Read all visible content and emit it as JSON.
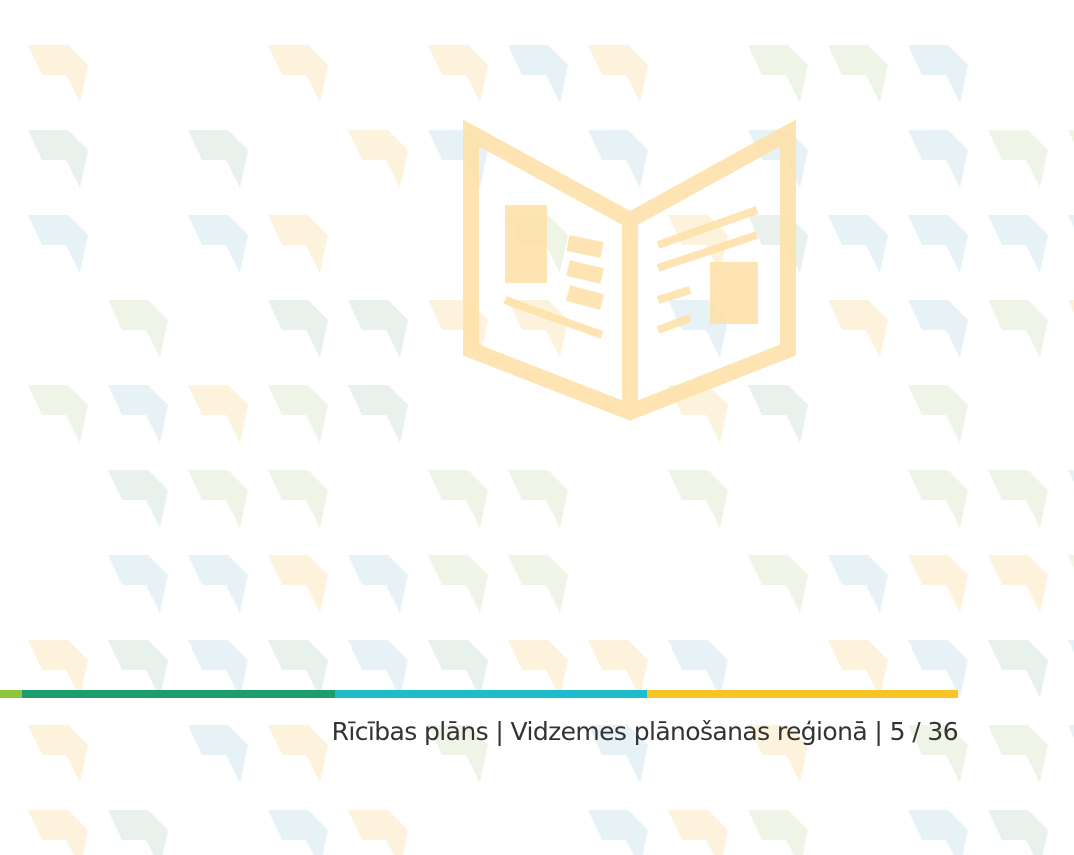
{
  "footer": {
    "text": "Rīcības plāns | Vidzemes plānošanas reģionā | 5 / 36"
  }
}
